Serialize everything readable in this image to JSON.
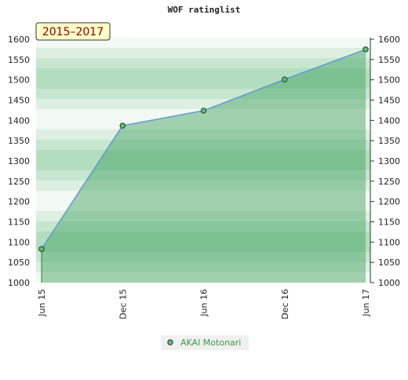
{
  "chart_data": {
    "type": "area",
    "title": "WOF ratinglist",
    "badge": "2015–2017",
    "categories": [
      "Jun 15",
      "Dec 15",
      "Jun 16",
      "Dec 16",
      "Jun 17"
    ],
    "series": [
      {
        "name": "AKAI Motonari",
        "color": "#5b9bd5",
        "values": [
          1083,
          1387,
          1424,
          1501,
          1575
        ]
      }
    ],
    "ylim": [
      1000,
      1600
    ],
    "yticks": [
      1000,
      1050,
      1100,
      1150,
      1200,
      1250,
      1300,
      1350,
      1400,
      1450,
      1500,
      1550,
      1600
    ]
  }
}
